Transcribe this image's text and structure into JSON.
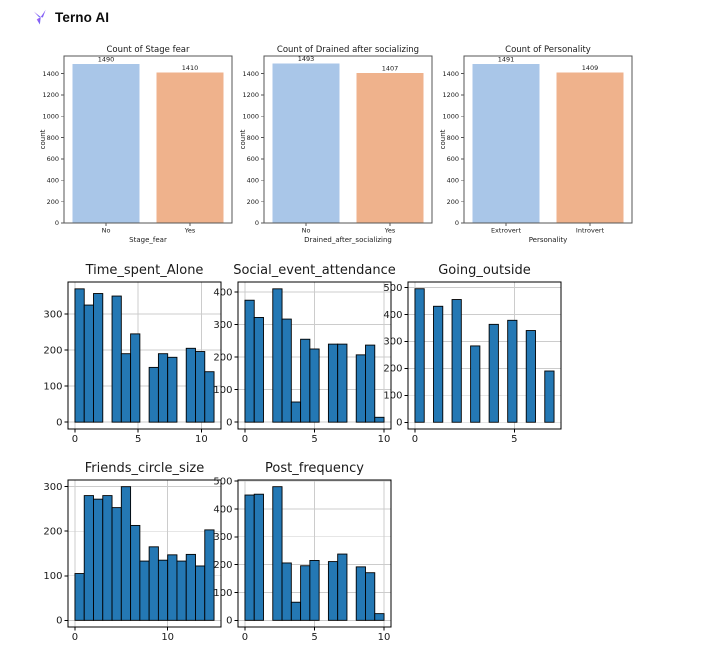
{
  "header": {
    "brand": "Terno AI"
  },
  "colors": {
    "text": "#1a1a1a",
    "grid": "#cccccc",
    "hist_bar": "#2478b4",
    "hist_edge": "#000000",
    "count_blue": "#a9c6e8",
    "count_orange": "#efb28c",
    "count_spine": "#555555",
    "hist_spine": "#000000",
    "logo_gradient": [
      "#c084fc",
      "#8b5cf6",
      "#5a7bf0"
    ]
  },
  "chart_data": [
    {
      "id": "count-stage-fear",
      "type": "bar",
      "title": "Count of Stage fear",
      "xlabel": "Stage_fear",
      "ylabel": "count",
      "categories": [
        "No",
        "Yes"
      ],
      "values": [
        1490,
        1410
      ],
      "bar_colors": [
        "#a9c6e8",
        "#efb28c"
      ],
      "yticks": [
        0,
        200,
        400,
        600,
        800,
        1000,
        1200,
        1400
      ],
      "ylim": [
        0,
        1565
      ],
      "grid": false,
      "value_labels": true
    },
    {
      "id": "count-drained",
      "type": "bar",
      "title": "Count of Drained after socializing",
      "xlabel": "Drained_after_socializing",
      "ylabel": "count",
      "categories": [
        "No",
        "Yes"
      ],
      "values": [
        1493,
        1407
      ],
      "bar_colors": [
        "#a9c6e8",
        "#efb28c"
      ],
      "yticks": [
        0,
        200,
        400,
        600,
        800,
        1000,
        1200,
        1400
      ],
      "ylim": [
        0,
        1565
      ],
      "grid": false,
      "value_labels": true
    },
    {
      "id": "count-personality",
      "type": "bar",
      "title": "Count of Personality",
      "xlabel": "Personality",
      "ylabel": "count",
      "categories": [
        "Extrovert",
        "Introvert"
      ],
      "values": [
        1491,
        1409
      ],
      "bar_colors": [
        "#a9c6e8",
        "#efb28c"
      ],
      "yticks": [
        0,
        200,
        400,
        600,
        800,
        1000,
        1200,
        1400
      ],
      "ylim": [
        0,
        1565
      ],
      "grid": false,
      "value_labels": true
    },
    {
      "id": "hist-time-spent-alone",
      "type": "histogram",
      "title": "Time_spent_Alone",
      "bin_start": 0,
      "bin_end": 11,
      "heights": [
        370,
        325,
        357,
        0,
        350,
        190,
        245,
        0,
        152,
        190,
        180,
        0,
        205,
        196,
        140
      ],
      "xticks": [
        0,
        5,
        10
      ],
      "yticks": [
        0,
        100,
        200,
        300
      ],
      "xlim": [
        -0.55,
        11.55
      ],
      "ylim": [
        -19,
        389
      ],
      "grid": true
    },
    {
      "id": "hist-social-event",
      "type": "histogram",
      "title": "Social_event_attendance",
      "bin_start": 0,
      "bin_end": 10,
      "heights": [
        375,
        322,
        0,
        410,
        317,
        62,
        255,
        225,
        0,
        240,
        240,
        0,
        207,
        237,
        15
      ],
      "xticks": [
        0,
        5,
        10
      ],
      "yticks": [
        0,
        100,
        200,
        300,
        400
      ],
      "xlim": [
        -0.5,
        10.5
      ],
      "ylim": [
        -21,
        431
      ],
      "grid": true
    },
    {
      "id": "hist-going-outside",
      "type": "histogram",
      "title": "Going_outside",
      "bin_start": 0,
      "bin_end": 7,
      "heights": [
        495,
        0,
        430,
        0,
        455,
        0,
        283,
        0,
        363,
        0,
        378,
        0,
        340,
        0,
        190
      ],
      "xticks": [
        0,
        5
      ],
      "yticks": [
        0,
        100,
        200,
        300,
        400,
        500
      ],
      "xlim": [
        -0.35,
        7.35
      ],
      "ylim": [
        -25,
        520
      ],
      "grid": true
    },
    {
      "id": "hist-friends-circle",
      "type": "histogram",
      "title": "Friends_circle_size",
      "bin_start": 0,
      "bin_end": 15,
      "heights": [
        105,
        280,
        272,
        280,
        253,
        300,
        213,
        133,
        165,
        135,
        147,
        133,
        148,
        122,
        203
      ],
      "xticks": [
        0,
        10
      ],
      "yticks": [
        0,
        100,
        200,
        300
      ],
      "xlim": [
        -0.75,
        15.75
      ],
      "ylim": [
        -15,
        315
      ],
      "grid": true
    },
    {
      "id": "hist-post-frequency",
      "type": "histogram",
      "title": "Post_frequency",
      "bin_start": 0,
      "bin_end": 10,
      "heights": [
        450,
        453,
        0,
        480,
        206,
        65,
        196,
        215,
        0,
        211,
        238,
        0,
        192,
        171,
        24
      ],
      "xticks": [
        0,
        5,
        10
      ],
      "yticks": [
        0,
        100,
        200,
        300,
        400,
        500
      ],
      "xlim": [
        -0.5,
        10.5
      ],
      "ylim": [
        -24,
        504
      ],
      "grid": true
    }
  ]
}
